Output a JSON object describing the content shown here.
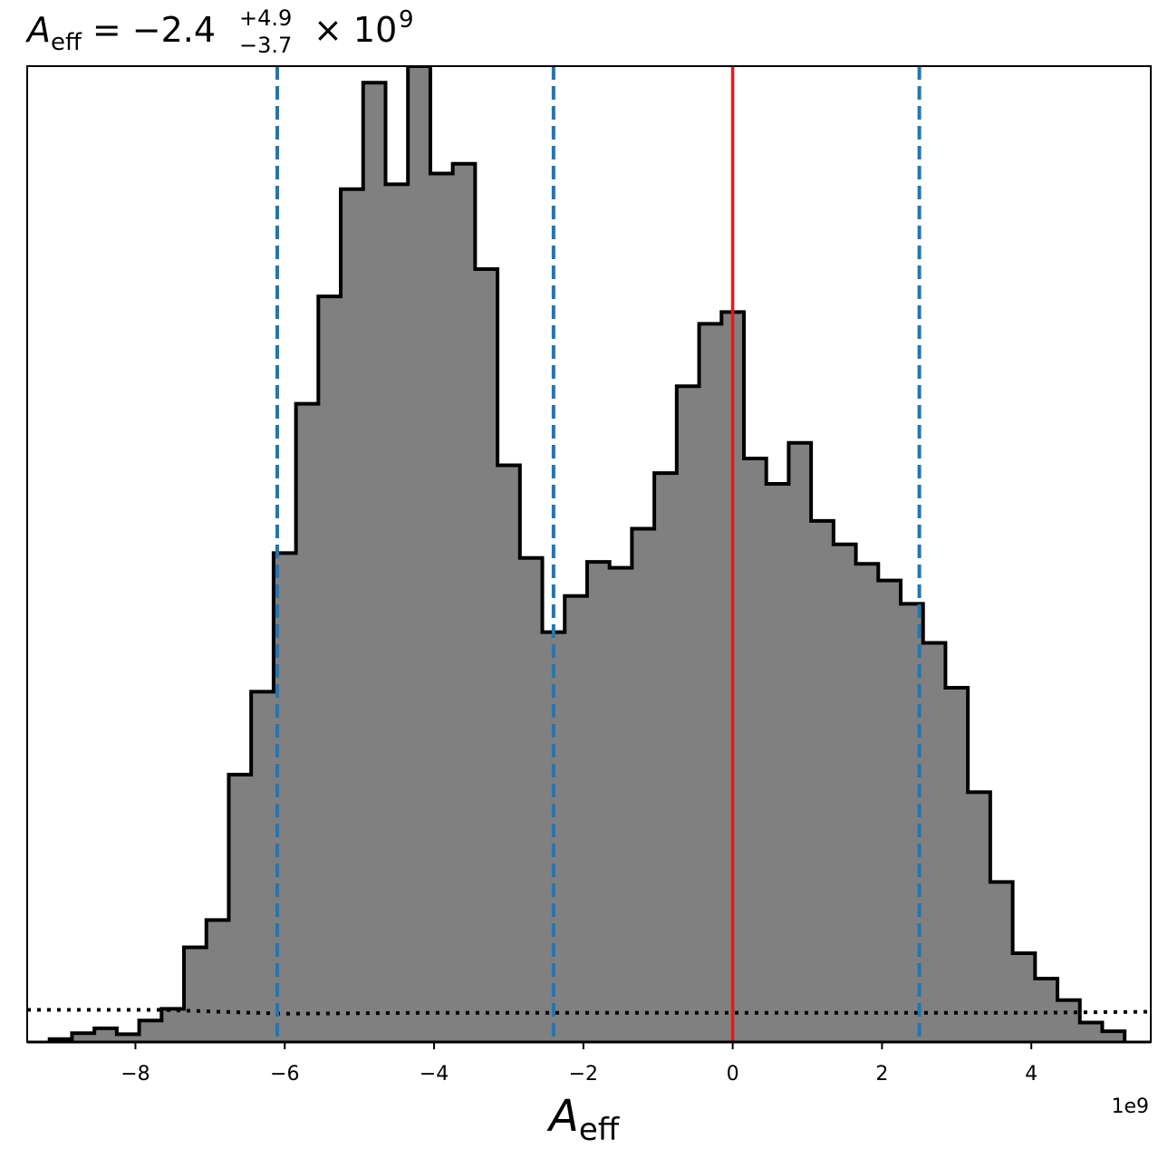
{
  "chart_data": {
    "type": "histogram",
    "title": {
      "variable": "A",
      "variable_subscript": "eff",
      "equals": "=",
      "median": "−2.4",
      "upper_error": "+4.9",
      "lower_error": "−3.7",
      "multiplier": "× 10",
      "exponent": "9"
    },
    "xlabel": {
      "variable": "A",
      "subscript": "eff"
    },
    "x_offset_label": "1e9",
    "xlim": [
      -9.45,
      5.6
    ],
    "ylim": [
      0,
      1.0
    ],
    "x_ticks": [
      -8,
      -6,
      -4,
      -2,
      0,
      2,
      4
    ],
    "x_tick_labels": [
      "−8",
      "−6",
      "−4",
      "−2",
      "0",
      "2",
      "4"
    ],
    "y_ticks_visible": false,
    "bin_edges": [
      -9.15,
      -8.85,
      -8.55,
      -8.25,
      -7.95,
      -7.65,
      -7.35,
      -7.05,
      -6.75,
      -6.45,
      -6.15,
      -5.85,
      -5.55,
      -5.25,
      -4.95,
      -4.65,
      -4.35,
      -4.05,
      -3.75,
      -3.45,
      -3.15,
      -2.85,
      -2.55,
      -2.25,
      -1.95,
      -1.65,
      -1.35,
      -1.05,
      -0.75,
      -0.45,
      -0.15,
      0.15,
      0.45,
      0.75,
      1.05,
      1.35,
      1.65,
      1.95,
      2.25,
      2.55,
      2.85,
      3.15,
      3.45,
      3.75,
      4.05,
      4.35,
      4.65,
      4.95,
      5.25
    ],
    "counts": [
      0.003,
      0.009,
      0.014,
      0.008,
      0.022,
      0.034,
      0.097,
      0.125,
      0.274,
      0.359,
      0.501,
      0.654,
      0.764,
      0.874,
      0.983,
      0.879,
      1.0,
      0.89,
      0.9,
      0.792,
      0.591,
      0.496,
      0.42,
      0.457,
      0.492,
      0.486,
      0.526,
      0.583,
      0.672,
      0.736,
      0.748,
      0.598,
      0.572,
      0.614,
      0.534,
      0.51,
      0.49,
      0.473,
      0.449,
      0.409,
      0.363,
      0.256,
      0.164,
      0.091,
      0.065,
      0.043,
      0.02,
      0.011
    ],
    "prior_line": {
      "style": "dotted",
      "color": "#000000",
      "x": [
        -9.45,
        -7.7,
        -6.0,
        -4.0,
        -2.0,
        0.0,
        2.0,
        4.0,
        5.6
      ],
      "y": [
        0.033,
        0.033,
        0.029,
        0.03,
        0.03,
        0.03,
        0.03,
        0.03,
        0.031
      ]
    },
    "quantile_lines": {
      "color": "#1f77b4",
      "style": "dashed",
      "x": [
        -6.1,
        -2.4,
        2.5
      ]
    },
    "reference_line": {
      "color": "#e41a1c",
      "style": "solid",
      "x": 0
    },
    "colors": {
      "fill": "#808080",
      "edge": "#000000",
      "quantile": "#1f77b4",
      "reference": "#e41a1c"
    }
  }
}
